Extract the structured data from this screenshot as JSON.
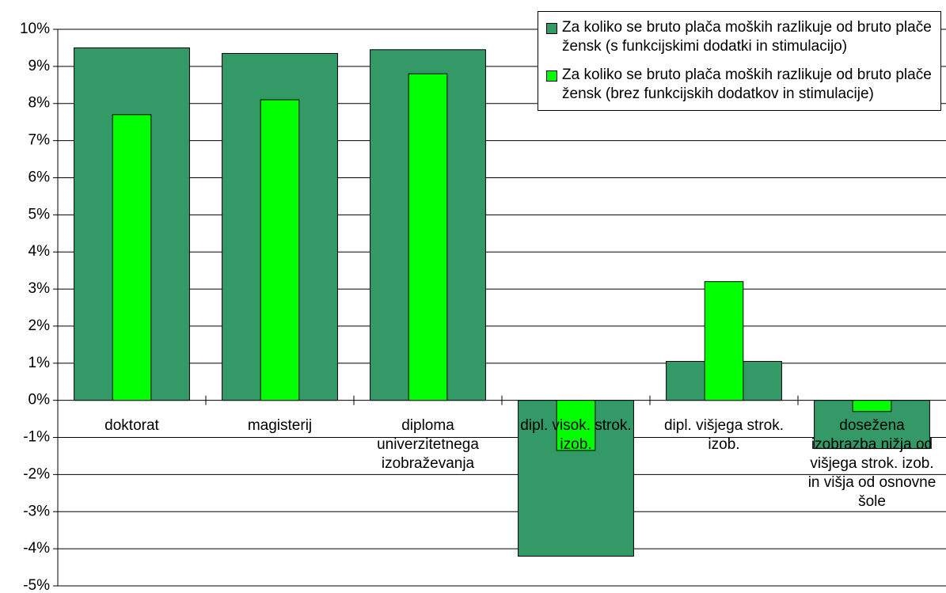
{
  "chart_data": {
    "type": "bar",
    "categories": [
      "doktorat",
      "magisterij",
      "diploma univerzitetnega izobraževanja",
      "dipl. visok. strok. izob.",
      "dipl. višjega strok. izob.",
      "dosežena izobrazba nižja od višjega strok. izob. in višja od osnovne šole"
    ],
    "series": [
      {
        "name": "Za koliko se bruto plača moških razlikuje od bruto plače žensk (s funkcijskimi dodatki in stimulacijo)",
        "color": "#339966",
        "values": [
          9.5,
          9.35,
          9.45,
          -4.2,
          1.05,
          -1.3
        ]
      },
      {
        "name": "Za koliko se bruto plača moških razlikuje od bruto plače žensk (brez funkcijskih dodatkov in stimulacije)",
        "color": "#00ff00",
        "values": [
          7.7,
          8.1,
          8.8,
          -1.35,
          3.2,
          -0.3
        ]
      }
    ],
    "ylim": [
      -5,
      10
    ],
    "yticks": [
      {
        "value": -5,
        "label": "-5%"
      },
      {
        "value": -4,
        "label": "-4%"
      },
      {
        "value": -3,
        "label": "-3%"
      },
      {
        "value": -2,
        "label": "-2%"
      },
      {
        "value": -1,
        "label": "-1%"
      },
      {
        "value": 0,
        "label": "0%"
      },
      {
        "value": 1,
        "label": "1%"
      },
      {
        "value": 2,
        "label": "2%"
      },
      {
        "value": 3,
        "label": "3%"
      },
      {
        "value": 4,
        "label": "4%"
      },
      {
        "value": 5,
        "label": "5%"
      },
      {
        "value": 6,
        "label": "6%"
      },
      {
        "value": 7,
        "label": "7%"
      },
      {
        "value": 8,
        "label": "8%"
      },
      {
        "value": 9,
        "label": "9%"
      },
      {
        "value": 10,
        "label": "10%"
      }
    ],
    "grid": true,
    "legend": "top-right"
  }
}
